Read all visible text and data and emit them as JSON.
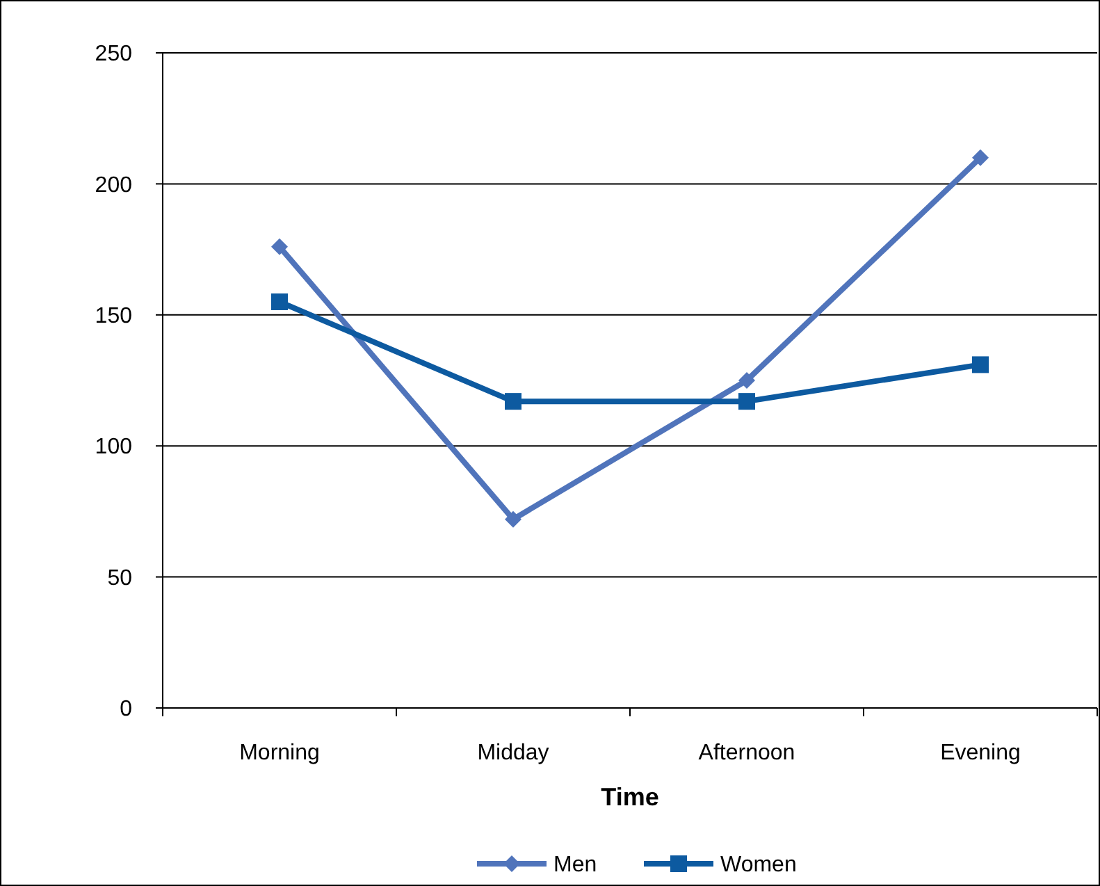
{
  "chart_data": {
    "type": "line",
    "xlabel": "Time",
    "categories": [
      "Morning",
      "Midday",
      "Afternoon",
      "Evening"
    ],
    "series": [
      {
        "name": "Men",
        "color": "#5074bb",
        "values": [
          176,
          72,
          125,
          210
        ],
        "marker": "diamond"
      },
      {
        "name": "Women",
        "color": "#0d5aa0",
        "values": [
          155,
          117,
          117,
          131
        ],
        "marker": "square"
      }
    ],
    "ylim": [
      0,
      250
    ],
    "yticks": [
      0,
      50,
      100,
      150,
      200,
      250
    ],
    "grid": "y",
    "legend": "bottom",
    "line_style": "solid"
  }
}
